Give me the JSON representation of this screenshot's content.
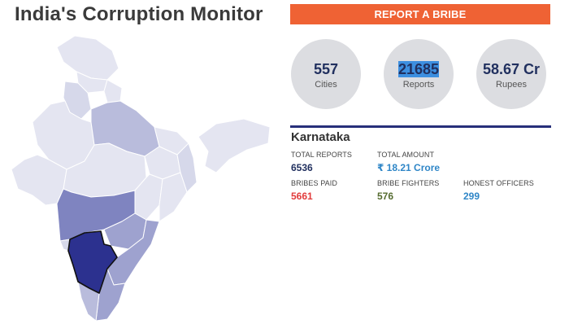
{
  "header": {
    "title": "India's Corruption Monitor"
  },
  "actions": {
    "report_label": "REPORT A BRIBE"
  },
  "stats": {
    "cities": {
      "value": "557",
      "label": "Cities"
    },
    "reports": {
      "value": "21685",
      "label": "Reports"
    },
    "rupees": {
      "value": "58.67 Cr",
      "label": "Rupees"
    }
  },
  "state_detail": {
    "name": "Karnataka",
    "total_reports": {
      "label": "TOTAL REPORTS",
      "value": "6536"
    },
    "total_amount": {
      "label": "TOTAL AMOUNT",
      "value": "₹ 18.21 Crore"
    },
    "bribes_paid": {
      "label": "BRIBES PAID",
      "value": "5661"
    },
    "bribe_fighters": {
      "label": "BRIBE FIGHTERS",
      "value": "576"
    },
    "honest_officers": {
      "label": "HONEST OFFICERS",
      "value": "299"
    }
  },
  "map": {
    "selected_state": "Karnataka",
    "colors": {
      "lightest": "#e4e5f1",
      "light": "#d6d8ea",
      "medium_light": "#b9bcdc",
      "medium": "#9ea2cf",
      "dark": "#7f84c0",
      "selected": "#2c318f",
      "border": "#ffffff"
    }
  },
  "colors": {
    "accent": "#ef6234",
    "navy": "#21305f",
    "divider": "#27307a",
    "red": "#e23b3b",
    "green": "#556b2f",
    "blue": "#2f86c7",
    "circle": "#dcdde1"
  }
}
